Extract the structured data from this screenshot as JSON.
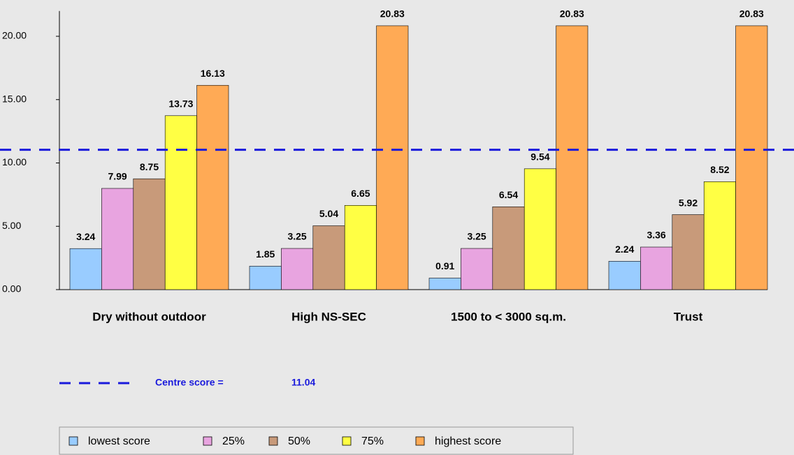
{
  "chart_data": {
    "type": "bar",
    "categories": [
      "Dry without outdoor",
      "High NS-SEC",
      "1500 to < 3000 sq.m.",
      "Trust"
    ],
    "series": [
      {
        "name": "lowest score",
        "color": "#99ccff",
        "values": [
          3.24,
          1.85,
          0.91,
          2.24
        ]
      },
      {
        "name": "25%",
        "color": "#e8a4e0",
        "values": [
          7.99,
          3.25,
          3.25,
          3.36
        ]
      },
      {
        "name": "50%",
        "color": "#c89a7a",
        "values": [
          8.75,
          5.04,
          6.54,
          5.92
        ]
      },
      {
        "name": "75%",
        "color": "#ffff44",
        "values": [
          13.73,
          6.65,
          9.54,
          8.52
        ]
      },
      {
        "name": "highest score",
        "color": "#ffaa55",
        "values": [
          16.13,
          20.83,
          20.83,
          20.83
        ]
      }
    ],
    "ylim": [
      0,
      22
    ],
    "yticks": [
      {
        "value": 0,
        "label": "0.00"
      },
      {
        "value": 5,
        "label": "5.00"
      },
      {
        "value": 10,
        "label": "10.00"
      },
      {
        "value": 15,
        "label": "15.00"
      },
      {
        "value": 20,
        "label": "20.00"
      }
    ],
    "reference_line": {
      "label": "Centre score =",
      "value": 11.04,
      "color": "#1a1adc"
    }
  }
}
